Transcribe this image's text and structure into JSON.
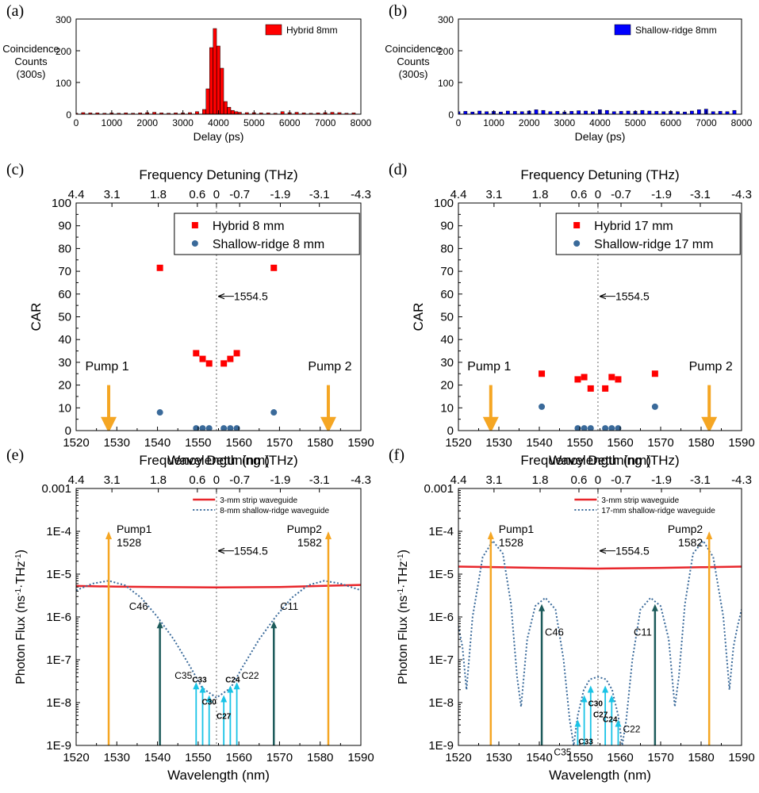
{
  "colors": {
    "hybrid": "#ff0000",
    "shallow_bar": "#0000ff",
    "shallow_dot": "#3a6a9a",
    "pump": "#f5a623",
    "strip": "#e8262b",
    "flux_dotted": "#3a6a9a",
    "dark_arrow": "#1d5b5b",
    "light_arrow": "#19c3e6"
  },
  "chart_data": [
    {
      "id": "a",
      "panel_label": "(a)",
      "type": "bar",
      "xlabel": "Delay (ps)",
      "ylabel": [
        "Coincidence",
        "Counts",
        "(300s)"
      ],
      "xlim": [
        0,
        8000
      ],
      "ylim": [
        0,
        300
      ],
      "xticks": [
        "0",
        "1000",
        "2000",
        "3000",
        "4000",
        "5000",
        "6000",
        "7000",
        "8000"
      ],
      "yticks": [
        "0",
        "100",
        "200",
        "300"
      ],
      "series": [
        {
          "name": "Hybrid 8mm",
          "color": "#ff0000",
          "x": [
            0,
            200,
            400,
            600,
            800,
            1000,
            1200,
            1400,
            1600,
            1800,
            2000,
            2200,
            2400,
            2600,
            2800,
            3000,
            3200,
            3400,
            3600,
            3700,
            3800,
            3900,
            4000,
            4100,
            4200,
            4300,
            4400,
            4500,
            4600,
            4800,
            5000,
            5200,
            5400,
            5600,
            5800,
            6000,
            6200,
            6400,
            6600,
            6800,
            7000,
            7200,
            7400,
            7600,
            7800
          ],
          "y": [
            3,
            5,
            4,
            4,
            3,
            4,
            3,
            4,
            3,
            4,
            5,
            6,
            4,
            3,
            4,
            4,
            5,
            8,
            15,
            80,
            210,
            270,
            215,
            145,
            40,
            22,
            12,
            8,
            6,
            5,
            5,
            4,
            4,
            3,
            8,
            5,
            6,
            4,
            3,
            4,
            5,
            6,
            5,
            3,
            4
          ]
        }
      ],
      "legend": "top-right"
    },
    {
      "id": "b",
      "panel_label": "(b)",
      "type": "bar",
      "xlabel": "Delay (ps)",
      "ylabel": [
        "Coincidence",
        "Counts",
        "(300s)"
      ],
      "xlim": [
        0,
        8000
      ],
      "ylim": [
        0,
        300
      ],
      "xticks": [
        "0",
        "1000",
        "2000",
        "3000",
        "4000",
        "5000",
        "6000",
        "7000",
        "8000"
      ],
      "yticks": [
        "0",
        "100",
        "200",
        "300"
      ],
      "series": [
        {
          "name": "Shallow-ridge 8mm",
          "color": "#0000ff",
          "x": [
            0,
            200,
            400,
            600,
            800,
            1000,
            1200,
            1400,
            1600,
            1800,
            2000,
            2200,
            2400,
            2600,
            2800,
            3000,
            3200,
            3400,
            3600,
            3800,
            4000,
            4200,
            4400,
            4600,
            4800,
            5000,
            5200,
            5400,
            5600,
            5800,
            6000,
            6200,
            6400,
            6600,
            6800,
            7000,
            7200,
            7400,
            7600,
            7800
          ],
          "y": [
            8,
            9,
            7,
            10,
            8,
            9,
            7,
            10,
            9,
            8,
            10,
            14,
            12,
            8,
            9,
            7,
            9,
            11,
            10,
            8,
            14,
            12,
            8,
            9,
            10,
            9,
            12,
            10,
            9,
            8,
            9,
            8,
            7,
            10,
            14,
            16,
            8,
            9,
            8,
            12
          ]
        }
      ],
      "legend": "top-right"
    },
    {
      "id": "c",
      "panel_label": "(c)",
      "type": "scatter",
      "xlabel": "Wavelength (nm)",
      "ylabel": "CAR",
      "top_xlabel": "Frequency Detuning (THz)",
      "xlim": [
        1520,
        1590
      ],
      "ylim": [
        0,
        100
      ],
      "xticks": [
        "1520",
        "1530",
        "1540",
        "1550",
        "1560",
        "1570",
        "1580",
        "1590"
      ],
      "yticks": [
        "0",
        "10",
        "20",
        "30",
        "40",
        "50",
        "60",
        "70",
        "80",
        "90",
        "100"
      ],
      "top_ticks": [
        "4.4",
        "3.1",
        "1.8",
        "0.6",
        "0",
        "-0.7",
        "-1.9",
        "-3.1",
        "-4.3"
      ],
      "series": [
        {
          "name": "Hybrid 8 mm",
          "marker": "square",
          "color": "#ff0000",
          "x": [
            1540.6,
            1549.5,
            1551.1,
            1552.7,
            1556.3,
            1557.9,
            1559.5,
            1568.6
          ],
          "y": [
            71.5,
            34,
            31.5,
            29.5,
            29.5,
            31.5,
            34,
            71.5
          ]
        },
        {
          "name": "Shallow-ridge 8 mm",
          "marker": "circle",
          "color": "#3a6a9a",
          "x": [
            1540.6,
            1549.5,
            1551.1,
            1552.7,
            1556.3,
            1557.9,
            1559.5,
            1568.6
          ],
          "y": [
            8,
            1,
            1,
            1,
            1,
            1,
            1,
            8
          ]
        }
      ],
      "center_line": 1554.5,
      "center_label": "1554.5",
      "pumps": [
        {
          "label": "Pump 1",
          "x": 1528
        },
        {
          "label": "Pump 2",
          "x": 1582
        }
      ],
      "legend": "top-right"
    },
    {
      "id": "d",
      "panel_label": "(d)",
      "type": "scatter",
      "xlabel": "Wavelength (nm)",
      "ylabel": "CAR",
      "top_xlabel": "Frequency Detuning (THz)",
      "xlim": [
        1520,
        1590
      ],
      "ylim": [
        0,
        100
      ],
      "xticks": [
        "1520",
        "1530",
        "1540",
        "1550",
        "1560",
        "1570",
        "1580",
        "1590"
      ],
      "yticks": [
        "0",
        "10",
        "20",
        "30",
        "40",
        "50",
        "60",
        "70",
        "80",
        "90",
        "100"
      ],
      "top_ticks": [
        "4.4",
        "3.1",
        "1.8",
        "0.6",
        "0",
        "-0.7",
        "-1.9",
        "-3.1",
        "-4.3"
      ],
      "series": [
        {
          "name": "Hybrid 17 mm",
          "marker": "square",
          "color": "#ff0000",
          "x": [
            1540.6,
            1549.5,
            1551.1,
            1552.7,
            1556.3,
            1557.9,
            1559.5,
            1568.6
          ],
          "y": [
            25,
            22.5,
            23.5,
            18.5,
            18.5,
            23.5,
            22.5,
            25
          ]
        },
        {
          "name": "Shallow-ridge 17 mm",
          "marker": "circle",
          "color": "#3a6a9a",
          "x": [
            1540.6,
            1549.5,
            1551.1,
            1552.7,
            1556.3,
            1557.9,
            1559.5,
            1568.6
          ],
          "y": [
            10.5,
            1,
            1,
            1,
            1,
            1,
            1,
            10.5
          ]
        }
      ],
      "center_line": 1554.5,
      "center_label": "1554.5",
      "pumps": [
        {
          "label": "Pump 1",
          "x": 1528
        },
        {
          "label": "Pump 2",
          "x": 1582
        }
      ],
      "legend": "top-right"
    },
    {
      "id": "e",
      "panel_label": "(e)",
      "type": "line",
      "xlabel": "Wavelength (nm)",
      "ylabel": "Photon Flux (ns-1·THz-1)",
      "ylabel_base": "Photon Flux (ns",
      "ylabel_exp1": "-1",
      "ylabel_mid": "·THz",
      "ylabel_exp2": "-1",
      "ylabel_end": ")",
      "top_xlabel": "Frequency Detuning (THz)",
      "xlim": [
        1520,
        1590
      ],
      "ylim": [
        1e-09,
        0.001
      ],
      "yscale": "log",
      "xticks": [
        "1520",
        "1530",
        "1540",
        "1550",
        "1560",
        "1570",
        "1580",
        "1590"
      ],
      "yticks": [
        "1E-9",
        "1E-8",
        "1E-7",
        "1E-6",
        "1E-5",
        "1E-4",
        "0.001"
      ],
      "top_ticks": [
        "4.4",
        "3.1",
        "1.8",
        "0.6",
        "0",
        "-0.7",
        "-1.9",
        "-3.1",
        "-4.3"
      ],
      "series": [
        {
          "name": "3-mm strip waveguide",
          "style": "solid",
          "color": "#e8262b",
          "x": [
            1520,
            1530,
            1540,
            1554.5,
            1570,
            1580,
            1590
          ],
          "y": [
            5.3e-06,
            5.1e-06,
            5e-06,
            4.9e-06,
            5e-06,
            5.3e-06,
            5.6e-06
          ]
        },
        {
          "name": "8-mm shallow-ridge waveguide",
          "style": "dotted",
          "color": "#3a6a9a",
          "x": [
            1520,
            1524,
            1528,
            1532,
            1536,
            1540,
            1544,
            1548,
            1551,
            1554.5,
            1558,
            1561,
            1565,
            1569,
            1573,
            1577,
            1581,
            1585,
            1590
          ],
          "y": [
            4.2e-06,
            6e-06,
            7e-06,
            5.5e-06,
            2.8e-06,
            1e-06,
            3e-07,
            7e-08,
            2.2e-08,
            1.3e-08,
            2.2e-08,
            7e-08,
            3e-07,
            1e-06,
            2.8e-06,
            5.5e-06,
            7e-06,
            6e-06,
            4.2e-06
          ]
        }
      ],
      "center_line": 1554.5,
      "center_label": "1554.5",
      "pumps": [
        {
          "label": "Pump1",
          "sub": "1528",
          "x": 1528,
          "y": 0.0001
        },
        {
          "label": "Pump2",
          "sub": "1582",
          "x": 1582,
          "y": 0.0001
        }
      ],
      "idlers": [
        {
          "label": "C46",
          "x": 1540.6,
          "y": 8e-07,
          "tone": "dark"
        },
        {
          "label": "C35",
          "x": 1549.5,
          "y": 3e-08,
          "tone": "light"
        },
        {
          "label": "C33",
          "x": 1551.1,
          "y": 2.5e-08,
          "tone": "light"
        },
        {
          "label": "C30",
          "x": 1552.7,
          "y": 1.5e-08,
          "tone": "light"
        },
        {
          "label": "C27",
          "x": 1556.3,
          "y": 1.5e-08,
          "tone": "light"
        },
        {
          "label": "C24",
          "x": 1557.9,
          "y": 2.5e-08,
          "tone": "light"
        },
        {
          "label": "C22",
          "x": 1559.5,
          "y": 3e-08,
          "tone": "light"
        },
        {
          "label": "C11",
          "x": 1568.6,
          "y": 8e-07,
          "tone": "dark"
        }
      ],
      "legend": "top"
    },
    {
      "id": "f",
      "panel_label": "(f)",
      "type": "line",
      "xlabel": "Wavelength (nm)",
      "ylabel": "Photon Flux (ns-1·THz-1)",
      "ylabel_base": "Photon Flux (ns",
      "ylabel_exp1": "-1",
      "ylabel_mid": "·THz",
      "ylabel_exp2": "-1",
      "ylabel_end": ")",
      "top_xlabel": "Frequency Detuning (THz)",
      "xlim": [
        1520,
        1590
      ],
      "ylim": [
        1e-09,
        0.001
      ],
      "yscale": "log",
      "xticks": [
        "1520",
        "1530",
        "1540",
        "1550",
        "1560",
        "1570",
        "1580",
        "1590"
      ],
      "yticks": [
        "1E-9",
        "1E-8",
        "1E-7",
        "1E-6",
        "1E-5",
        "1E-4",
        "0.001"
      ],
      "top_ticks": [
        "4.4",
        "3.1",
        "1.8",
        "0.6",
        "0",
        "-0.7",
        "-1.9",
        "-3.1",
        "-4.3"
      ],
      "series": [
        {
          "name": "3-mm strip waveguide",
          "style": "solid",
          "color": "#e8262b",
          "x": [
            1520,
            1530,
            1540,
            1554.5,
            1570,
            1580,
            1590
          ],
          "y": [
            1.5e-05,
            1.45e-05,
            1.4e-05,
            1.35e-05,
            1.4e-05,
            1.45e-05,
            1.5e-05
          ]
        },
        {
          "name": "17-mm shallow-ridge waveguide",
          "style": "dotted",
          "color": "#3a6a9a",
          "x": [
            1520,
            1521,
            1522,
            1523.5,
            1526,
            1528.5,
            1531,
            1533,
            1534.5,
            1535.5,
            1537,
            1539,
            1541.5,
            1544,
            1546,
            1547.5,
            1548.5,
            1549.5,
            1551,
            1552.5,
            1554.5,
            1556.5,
            1558,
            1559.5,
            1560.5,
            1561.5,
            1563,
            1565,
            1567.5,
            1570,
            1572,
            1573.5,
            1574.5,
            1576,
            1578,
            1580.5,
            1583,
            1585.5,
            1587,
            1588,
            1589,
            1590
          ],
          "y": [
            6e-07,
            2e-07,
            2e-08,
            1e-06,
            2.5e-05,
            6e-05,
            3e-05,
            2e-06,
            4e-08,
            8e-09,
            3e-07,
            1.8e-06,
            2.8e-06,
            1.5e-06,
            1e-07,
            4e-09,
            1e-09,
            5e-09,
            2e-08,
            3.5e-08,
            4e-08,
            3.5e-08,
            2e-08,
            5e-09,
            1e-09,
            4e-09,
            1e-07,
            1.5e-06,
            2.8e-06,
            1.8e-06,
            3e-07,
            8e-09,
            4e-08,
            2e-06,
            3e-05,
            6e-05,
            2.5e-05,
            1e-06,
            2e-08,
            2e-07,
            6e-07,
            1.5e-06
          ]
        }
      ],
      "center_line": 1554.5,
      "center_label": "1554.5",
      "pumps": [
        {
          "label": "Pump1",
          "sub": "1528",
          "x": 1528,
          "y": 0.0001
        },
        {
          "label": "Pump2",
          "sub": "1582",
          "x": 1582,
          "y": 0.0001
        }
      ],
      "idlers": [
        {
          "label": "C46",
          "x": 1540.6,
          "y": 2e-06,
          "tone": "dark"
        },
        {
          "label": "C35",
          "x": 1549.5,
          "y": 4e-09,
          "tone": "light"
        },
        {
          "label": "C33",
          "x": 1551.1,
          "y": 1.5e-08,
          "tone": "light"
        },
        {
          "label": "C30",
          "x": 1552.7,
          "y": 2.5e-08,
          "tone": "light"
        },
        {
          "label": "C27",
          "x": 1556.3,
          "y": 2.5e-08,
          "tone": "light"
        },
        {
          "label": "C24",
          "x": 1557.9,
          "y": 1.5e-08,
          "tone": "light"
        },
        {
          "label": "C22",
          "x": 1559.5,
          "y": 4e-09,
          "tone": "light"
        },
        {
          "label": "C11",
          "x": 1568.6,
          "y": 2e-06,
          "tone": "dark"
        }
      ],
      "legend": "top"
    }
  ]
}
